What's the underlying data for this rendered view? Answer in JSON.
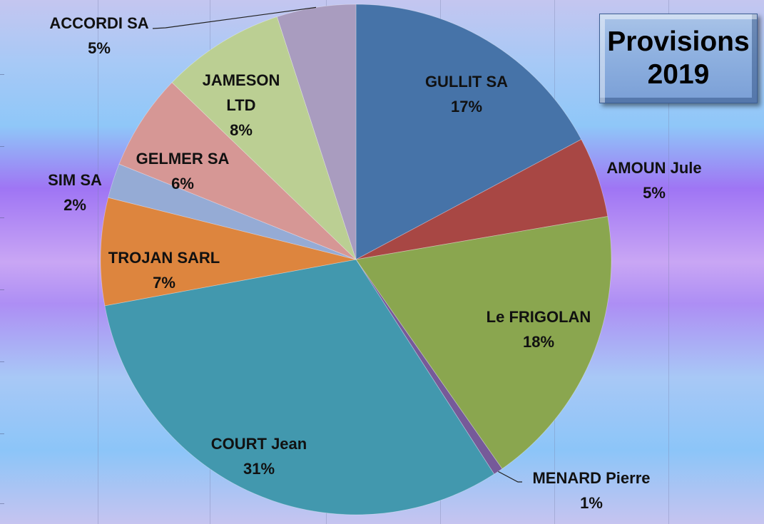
{
  "title": {
    "line1": "Provisions",
    "line2": "2019"
  },
  "colors": {
    "GULLIT SA": "#4673a8",
    "AMOUN Jule": "#a84744",
    "Le FRIGOLAN": "#8aa64f",
    "MENARD Pierre": "#765a99",
    "COURT Jean": "#4298ae",
    "TROJAN SARL": "#dd853e",
    "SIM SA": "#95abd5",
    "GELMER SA": "#d69795",
    "JAMESON LTD": "#bbcf93",
    "ACCORDI SA": "#a99cbf"
  },
  "chart_data": {
    "type": "pie",
    "title": "Provisions 2019",
    "slices": [
      {
        "label": "GULLIT SA",
        "label_lines": [
          "GULLIT SA"
        ],
        "percent_text": "17%",
        "value": 17.2
      },
      {
        "label": "AMOUN Jule",
        "label_lines": [
          "AMOUN Jule"
        ],
        "percent_text": "5%",
        "value": 5.1
      },
      {
        "label": "Le FRIGOLAN",
        "label_lines": [
          "Le FRIGOLAN"
        ],
        "percent_text": "18%",
        "value": 18.0
      },
      {
        "label": "MENARD Pierre",
        "label_lines": [
          "MENARD Pierre"
        ],
        "percent_text": "1%",
        "value": 0.6
      },
      {
        "label": "COURT Jean",
        "label_lines": [
          "COURT Jean"
        ],
        "percent_text": "31%",
        "value": 31.2
      },
      {
        "label": "TROJAN SARL",
        "label_lines": [
          "TROJAN SARL"
        ],
        "percent_text": "7%",
        "value": 6.8
      },
      {
        "label": "SIM SA",
        "label_lines": [
          "SIM SA"
        ],
        "percent_text": "2%",
        "value": 2.2
      },
      {
        "label": "GELMER SA",
        "label_lines": [
          "GELMER SA"
        ],
        "percent_text": "6%",
        "value": 6.1
      },
      {
        "label": "JAMESON LTD",
        "label_lines": [
          "JAMESON",
          "LTD"
        ],
        "percent_text": "8%",
        "value": 7.8
      },
      {
        "label": "ACCORDI SA",
        "label_lines": [
          "ACCORDI SA"
        ],
        "percent_text": "5%",
        "value": 5.0
      }
    ]
  }
}
